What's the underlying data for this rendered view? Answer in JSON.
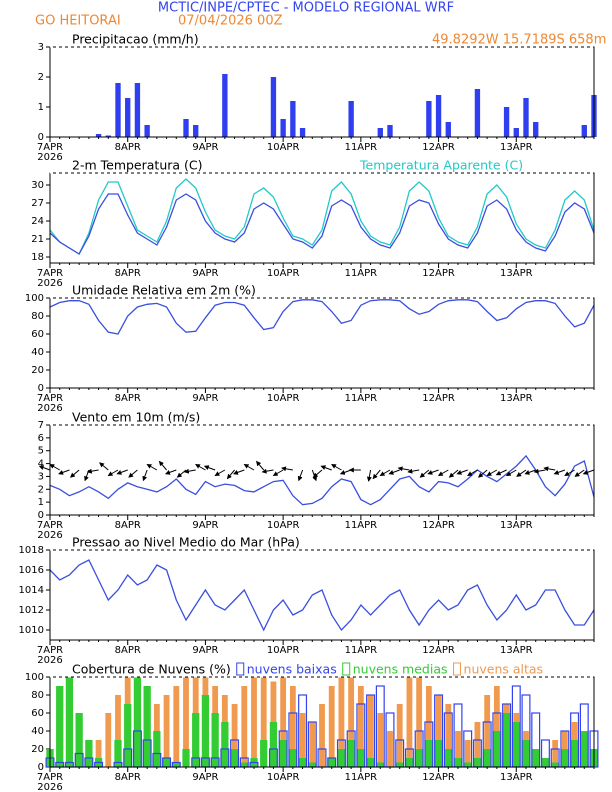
{
  "header": {
    "title": "MCTIC/INPE/CPTEC - MODELO REGIONAL WRF",
    "location": "GO HEITORAI",
    "run": "07/04/2026 00Z",
    "coords": "49.8292W 15.7189S 658m"
  },
  "time_axis": {
    "categories": [
      "7APR",
      null,
      null,
      null,
      null,
      null,
      null,
      null,
      "8APR",
      null,
      null,
      null,
      null,
      null,
      null,
      null,
      "9APR",
      null,
      null,
      null,
      null,
      null,
      null,
      null,
      "10APR",
      null,
      null,
      null,
      null,
      null,
      null,
      null,
      "11APR",
      null,
      null,
      null,
      null,
      null,
      null,
      null,
      "12APR",
      null,
      null,
      null,
      null,
      null,
      null,
      null,
      "13APR",
      null,
      null,
      null,
      null,
      null,
      null,
      null,
      null
    ],
    "year": "2026"
  },
  "chart_data": [
    {
      "type": "bar",
      "title": "Precipitacao (mm/h)",
      "ylim": [
        0,
        3
      ],
      "yticks": [
        0,
        1,
        2,
        3
      ],
      "series": [
        {
          "name": null,
          "color": "#2f3ff0",
          "fill": true,
          "values": [
            0,
            0,
            0,
            0,
            0,
            0.1,
            0.05,
            1.8,
            1.3,
            1.8,
            0.4,
            0,
            0,
            0,
            0.6,
            0.4,
            0,
            0,
            2.1,
            0,
            0,
            0,
            0,
            2.0,
            0.6,
            1.2,
            0.3,
            0,
            0,
            0,
            0,
            1.2,
            0,
            0,
            0.3,
            0.4,
            0,
            0,
            0,
            1.2,
            1.4,
            0.5,
            0,
            0,
            1.6,
            0,
            0,
            1.0,
            0.3,
            1.3,
            0.5,
            0,
            0,
            0,
            0,
            0.4,
            1.4
          ]
        }
      ]
    },
    {
      "type": "line",
      "title": "2-m Temperatura (C)",
      "ylim": [
        17,
        32
      ],
      "yticks": [
        18,
        21,
        24,
        27,
        30
      ],
      "series": [
        {
          "name": "Temperatura Aparente (C)",
          "color": "#22c8c8",
          "values": [
            22.5,
            20.5,
            19.5,
            18.5,
            22,
            27.5,
            30.5,
            30.5,
            26.5,
            22.5,
            21.5,
            20.5,
            24,
            29.5,
            31,
            29.5,
            25.5,
            22.5,
            21.5,
            21,
            23,
            28.5,
            29.5,
            28,
            24.5,
            21.5,
            21,
            20,
            22.5,
            29,
            30.5,
            28.5,
            24,
            21.5,
            20.5,
            20,
            23,
            29,
            30.5,
            29,
            24.5,
            21.5,
            20.5,
            20,
            23,
            28.5,
            30,
            28,
            23.5,
            21,
            20,
            19.5,
            22.5,
            27.5,
            29,
            27.5,
            22.5
          ]
        },
        {
          "name": null,
          "color": "#3a4fe0",
          "values": [
            22,
            20.5,
            19.5,
            18.5,
            21.5,
            26,
            28.5,
            28.5,
            25,
            22,
            21,
            20,
            23,
            27.5,
            28.5,
            27.5,
            24,
            22,
            21,
            20.5,
            22,
            26,
            27,
            26,
            23.5,
            21,
            20.5,
            19.5,
            21.5,
            26.5,
            27.5,
            26.5,
            23,
            21,
            20,
            19.5,
            22,
            26.5,
            27.5,
            27,
            23.5,
            21,
            20,
            19.5,
            22,
            26.5,
            27.5,
            26,
            22.5,
            20.5,
            19.5,
            19,
            21.5,
            25.5,
            27,
            26,
            22
          ]
        }
      ]
    },
    {
      "type": "line",
      "title": "Umidade Relativa em 2m (%)",
      "ylim": [
        0,
        100
      ],
      "yticks": [
        0,
        20,
        40,
        60,
        80,
        100
      ],
      "series": [
        {
          "name": null,
          "color": "#3a4fe0",
          "values": [
            90,
            95,
            97,
            97,
            93,
            75,
            62,
            60,
            80,
            90,
            93,
            94,
            90,
            72,
            62,
            63,
            78,
            92,
            95,
            95,
            92,
            78,
            65,
            67,
            85,
            96,
            98,
            98,
            96,
            85,
            72,
            75,
            92,
            97,
            98,
            98,
            97,
            88,
            82,
            85,
            93,
            97,
            98,
            98,
            96,
            85,
            75,
            78,
            88,
            95,
            97,
            97,
            94,
            80,
            68,
            72,
            92
          ]
        }
      ]
    },
    {
      "type": "line",
      "title": "Vento em 10m (m/s)",
      "ylim": [
        0,
        7
      ],
      "yticks": [
        0,
        1,
        2,
        3,
        4,
        5,
        6,
        7
      ],
      "series": [
        {
          "name": null,
          "color": "#3a4fe0",
          "values": [
            2.3,
            2.0,
            1.5,
            1.8,
            2.2,
            1.8,
            1.3,
            2.0,
            2.5,
            2.2,
            2.0,
            1.8,
            2.2,
            2.8,
            2.0,
            1.6,
            2.6,
            2.2,
            2.4,
            2.3,
            1.9,
            1.8,
            2.2,
            2.6,
            2.7,
            1.5,
            0.8,
            0.9,
            1.3,
            2.2,
            2.8,
            2.6,
            1.2,
            0.8,
            1.2,
            2.0,
            2.8,
            3.0,
            2.2,
            1.8,
            2.6,
            2.5,
            2.2,
            2.8,
            3.5,
            3.0,
            2.6,
            3.2,
            3.8,
            4.6,
            3.5,
            2.2,
            1.5,
            2.4,
            3.8,
            4.2,
            1.4
          ]
        }
      ],
      "wind_direction": [
        290,
        300,
        250,
        230,
        200,
        260,
        310,
        240,
        250,
        230,
        200,
        300,
        320,
        250,
        230,
        260,
        300,
        290,
        240,
        220,
        250,
        300,
        320,
        260,
        240,
        280,
        200,
        160,
        230,
        290,
        300,
        250,
        270,
        190,
        220,
        240,
        250,
        280,
        260,
        230,
        250,
        240,
        230,
        250,
        240,
        230,
        240,
        245,
        240,
        235,
        250,
        260,
        280,
        250,
        240,
        235,
        250
      ]
    },
    {
      "type": "line",
      "title": "Pressao ao Nivel Medio do Mar (hPa)",
      "ylim": [
        1009,
        1018
      ],
      "yticks": [
        1010,
        1012,
        1014,
        1016,
        1018
      ],
      "series": [
        {
          "name": null,
          "color": "#3a4fe0",
          "values": [
            1016,
            1015,
            1015.5,
            1016.5,
            1017,
            1015,
            1013,
            1014,
            1015.5,
            1014.5,
            1015,
            1016.5,
            1016,
            1013,
            1011,
            1012.5,
            1014,
            1012.5,
            1012,
            1013,
            1014,
            1012,
            1010,
            1012,
            1013,
            1011.5,
            1012,
            1013.5,
            1014,
            1011.5,
            1010,
            1011,
            1012.5,
            1011.5,
            1012.5,
            1013.5,
            1014,
            1012,
            1010.5,
            1012,
            1013,
            1012,
            1012.5,
            1014,
            1014.5,
            1012.5,
            1011,
            1012,
            1013.5,
            1012,
            1012.5,
            1014,
            1014,
            1012,
            1010.5,
            1010.5,
            1012
          ]
        }
      ]
    },
    {
      "type": "bar",
      "title": "Cobertura de Nuvens (%)",
      "ylim": [
        0,
        100
      ],
      "yticks": [
        0,
        20,
        40,
        60,
        80,
        100
      ],
      "series": [
        {
          "name": "nuvens baixas",
          "color": "#3344ee",
          "fill": false,
          "values": [
            10,
            5,
            5,
            15,
            10,
            5,
            0,
            5,
            20,
            40,
            30,
            15,
            10,
            5,
            0,
            10,
            10,
            10,
            20,
            30,
            10,
            5,
            0,
            20,
            40,
            60,
            80,
            50,
            20,
            10,
            30,
            40,
            70,
            80,
            90,
            60,
            30,
            20,
            40,
            50,
            80,
            60,
            70,
            40,
            30,
            50,
            60,
            70,
            90,
            80,
            60,
            30,
            20,
            40,
            60,
            70,
            40
          ]
        },
        {
          "name": "nuvens medias",
          "color": "#33cc33",
          "fill": true,
          "values": [
            20,
            90,
            100,
            60,
            30,
            10,
            0,
            30,
            70,
            100,
            90,
            40,
            10,
            5,
            20,
            60,
            80,
            60,
            50,
            20,
            5,
            10,
            30,
            50,
            30,
            20,
            10,
            5,
            0,
            10,
            20,
            30,
            20,
            10,
            5,
            0,
            5,
            10,
            20,
            30,
            30,
            20,
            10,
            5,
            10,
            20,
            40,
            60,
            50,
            30,
            20,
            10,
            5,
            20,
            30,
            40,
            20
          ]
        },
        {
          "name": "nuvens altas",
          "color": "#f09a50",
          "fill": true,
          "values": [
            0,
            0,
            0,
            20,
            10,
            30,
            60,
            80,
            100,
            100,
            90,
            70,
            80,
            90,
            100,
            100,
            100,
            90,
            80,
            70,
            90,
            100,
            100,
            95,
            100,
            90,
            60,
            50,
            70,
            90,
            100,
            100,
            90,
            80,
            60,
            40,
            70,
            100,
            100,
            90,
            80,
            70,
            40,
            30,
            50,
            80,
            90,
            70,
            60,
            40,
            20,
            10,
            30,
            40,
            50,
            30,
            10
          ]
        }
      ]
    }
  ]
}
